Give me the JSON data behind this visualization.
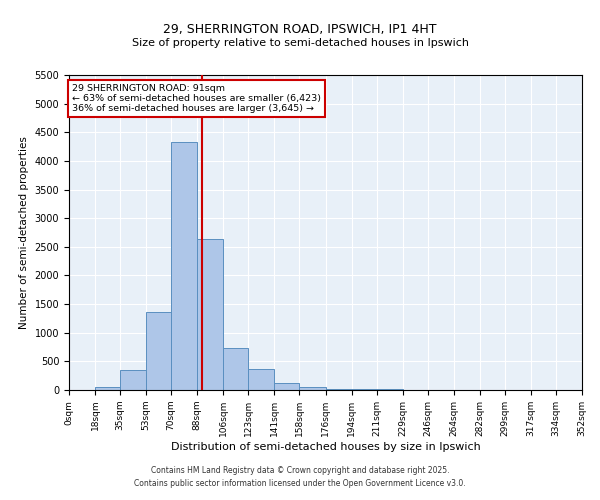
{
  "title_line1": "29, SHERRINGTON ROAD, IPSWICH, IP1 4HT",
  "title_line2": "Size of property relative to semi-detached houses in Ipswich",
  "xlabel": "Distribution of semi-detached houses by size in Ipswich",
  "ylabel": "Number of semi-detached properties",
  "annotation_line1": "29 SHERRINGTON ROAD: 91sqm",
  "annotation_line2": "← 63% of semi-detached houses are smaller (6,423)",
  "annotation_line3": "36% of semi-detached houses are larger (3,645) →",
  "bin_edges": [
    0,
    18,
    35,
    53,
    70,
    88,
    106,
    123,
    141,
    158,
    176,
    194,
    211,
    229,
    246,
    264,
    282,
    299,
    317,
    334,
    352
  ],
  "bin_labels": [
    "0sqm",
    "18sqm",
    "35sqm",
    "53sqm",
    "70sqm",
    "88sqm",
    "106sqm",
    "123sqm",
    "141sqm",
    "158sqm",
    "176sqm",
    "194sqm",
    "211sqm",
    "229sqm",
    "246sqm",
    "264sqm",
    "282sqm",
    "299sqm",
    "317sqm",
    "334sqm",
    "352sqm"
  ],
  "bar_heights": [
    0,
    50,
    350,
    1370,
    4330,
    2640,
    730,
    370,
    130,
    50,
    25,
    15,
    10,
    8,
    5,
    4,
    3,
    2,
    1,
    1
  ],
  "bar_color": "#aec6e8",
  "bar_edge_color": "#5a8fc0",
  "vline_color": "#cc0000",
  "vline_x": 91,
  "ylim": [
    0,
    5500
  ],
  "yticks": [
    0,
    500,
    1000,
    1500,
    2000,
    2500,
    3000,
    3500,
    4000,
    4500,
    5000,
    5500
  ],
  "annotation_box_color": "#cc0000",
  "background_color": "#e8f0f8",
  "footer_line1": "Contains HM Land Registry data © Crown copyright and database right 2025.",
  "footer_line2": "Contains public sector information licensed under the Open Government Licence v3.0."
}
